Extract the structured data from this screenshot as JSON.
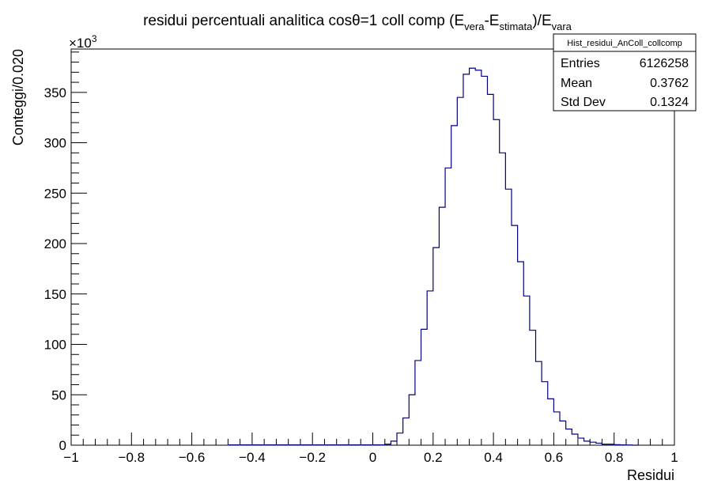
{
  "chart_data": {
    "type": "histogram",
    "title": {
      "main": "residui percentuali analitica cosθ=1 coll comp (E",
      "sub1": "vera",
      "mid1": "-E",
      "sub2": "stimata",
      "mid2": ")/E",
      "sub3": "vara"
    },
    "xlabel": "Residui",
    "ylabel": "Conteggi/0.020",
    "y_multiplier": "×10",
    "y_multiplier_exp": "3",
    "xlim": [
      -1,
      1
    ],
    "ylim": [
      0,
      393
    ],
    "x_ticks": [
      -1,
      -0.8,
      -0.6,
      -0.4,
      -0.2,
      0,
      0.2,
      0.4,
      0.6,
      0.8,
      1
    ],
    "x_tick_labels": [
      "−1",
      "−0.8",
      "−0.6",
      "−0.4",
      "−0.2",
      "0",
      "0.2",
      "0.4",
      "0.6",
      "0.8",
      "1"
    ],
    "y_ticks": [
      0,
      50,
      100,
      150,
      200,
      250,
      300,
      350
    ],
    "y_tick_labels": [
      "0",
      "50",
      "100",
      "150",
      "200",
      "250",
      "300",
      "350"
    ],
    "bin_width": 0.02,
    "bins_x_start": [
      0.04,
      0.06,
      0.08,
      0.1,
      0.12,
      0.14,
      0.16,
      0.18,
      0.2,
      0.22,
      0.24,
      0.26,
      0.28,
      0.3,
      0.32,
      0.34,
      0.36,
      0.38,
      0.4,
      0.42,
      0.44,
      0.46,
      0.48,
      0.5,
      0.52,
      0.54,
      0.56,
      0.58,
      0.6,
      0.62,
      0.64,
      0.66,
      0.68,
      0.7,
      0.72,
      0.74,
      0.76,
      0.78,
      0.8,
      0.82,
      0.84,
      0.86
    ],
    "values": [
      1,
      4,
      12,
      27,
      50,
      84,
      115,
      153,
      196,
      236,
      275,
      317,
      345,
      368,
      374,
      372,
      366,
      348,
      323,
      290,
      254,
      218,
      182,
      148,
      114,
      83,
      63,
      46,
      33,
      24,
      16,
      11,
      7,
      4,
      3,
      2,
      1,
      1,
      0.5,
      0.3,
      0.2,
      0
    ],
    "tail_low_x": [
      -0.48,
      0.04
    ],
    "tail_low_value": 0.3,
    "line_color": "#000080",
    "grid": false,
    "stats_box": {
      "name": "Hist_residui_AnColl_collcomp",
      "rows": [
        {
          "label": "Entries",
          "value": "6126258"
        },
        {
          "label": "Mean",
          "value": "0.3762"
        },
        {
          "label": "Std Dev",
          "value": "0.1324"
        }
      ],
      "position": "top-right"
    }
  }
}
